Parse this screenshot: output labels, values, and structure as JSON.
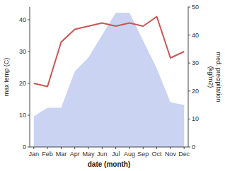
{
  "chart_data": {
    "type": "line",
    "categories": [
      "Jan",
      "Feb",
      "Mar",
      "Apr",
      "May",
      "Jun",
      "Jul",
      "Aug",
      "Sep",
      "Oct",
      "Nov",
      "Dec"
    ],
    "series": [
      {
        "type": "area",
        "axis": "y2",
        "color": "#b8c4ee",
        "values": [
          11,
          14,
          14,
          27,
          32,
          40,
          48,
          48,
          38,
          28,
          16,
          15
        ]
      },
      {
        "type": "line",
        "color": "#cc5555",
        "values": [
          20,
          19,
          33,
          37,
          38,
          39,
          38,
          39,
          38,
          41,
          28,
          30
        ]
      }
    ],
    "xlabel": "date (month)",
    "ylabel": "max temp (C)",
    "y2label": "med. precipitation\n(kg/m2)",
    "ylim": [
      0,
      44
    ],
    "yticks": [
      0,
      10,
      20,
      30,
      40
    ],
    "y2lim": [
      0,
      50
    ],
    "y2ticks": [
      0,
      10,
      20,
      30,
      40,
      50
    ],
    "grid": false
  }
}
